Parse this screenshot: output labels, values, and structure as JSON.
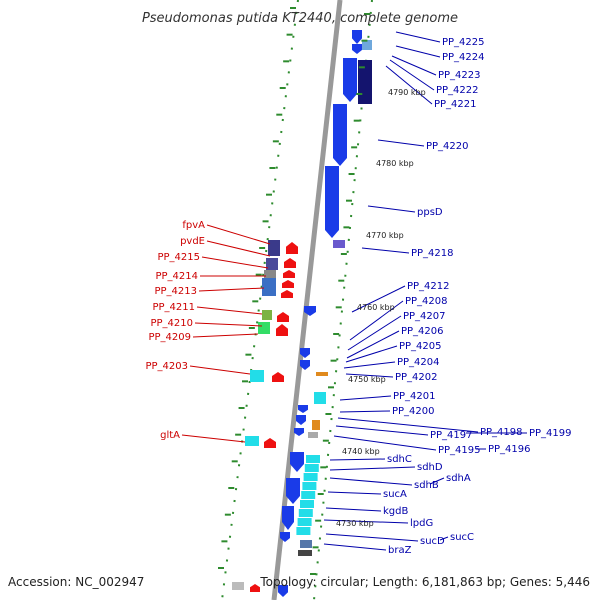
{
  "title": "Pseudomonas putida KT2440, complete genome",
  "accession": "Accession: NC_002947",
  "topology": "Topology: circular; Length: 6,181,863 bp; Genes: 5,446",
  "colors": {
    "forward_label": "#cc0000",
    "reverse_label": "#0000aa",
    "backbone": "#999999",
    "dots": "#2e8b2e",
    "blue": "#1a3be8",
    "navy": "#14146e",
    "cyan": "#22dde8",
    "red": "#ee1111"
  },
  "kbp_ticks": [
    "4790 kbp",
    "4780 kbp",
    "4770 kbp",
    "4760 kbp",
    "4750 kbp",
    "4740 kbp",
    "4730 kbp"
  ],
  "left_labels": [
    "fpvA",
    "pvdE",
    "PP_4215",
    "PP_4214",
    "PP_4213",
    "PP_4211",
    "PP_4210",
    "PP_4209",
    "PP_4203",
    "gltA"
  ],
  "right_labels": [
    "PP_4225",
    "PP_4224",
    "PP_4223",
    "PP_4222",
    "PP_4221",
    "PP_4220",
    "ppsD",
    "PP_4218",
    "PP_4212",
    "PP_4208",
    "PP_4207",
    "PP_4206",
    "PP_4205",
    "PP_4204",
    "PP_4202",
    "PP_4201",
    "PP_4200",
    "PP_4198",
    "PP_4199",
    "PP_4197",
    "PP_4196",
    "PP_4195",
    "sdhC",
    "sdhD",
    "sdhA",
    "sdhB",
    "sucA",
    "kgdB",
    "lpdG",
    "sucC",
    "sucD",
    "braZ"
  ]
}
